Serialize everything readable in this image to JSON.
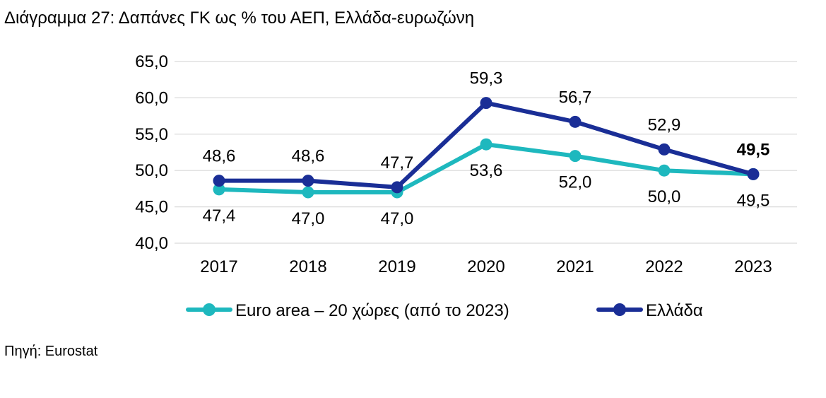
{
  "title": "Διάγραμμα 27: Δαπάνες ΓΚ ως % του ΑΕΠ, Ελλάδα-ευρωζώνη",
  "source": "Πηγή: Eurostat",
  "chart_data": {
    "type": "line",
    "title": "Διάγραμμα 27: Δαπάνες ΓΚ ως % του ΑΕΠ, Ελλάδα-ευρωζώνη",
    "xlabel": "",
    "ylabel": "",
    "x": [
      "2017",
      "2018",
      "2019",
      "2020",
      "2021",
      "2022",
      "2023"
    ],
    "ylim": [
      40.0,
      65.0
    ],
    "yticks": [
      "40,0",
      "45,0",
      "50,0",
      "55,0",
      "60,0",
      "65,0"
    ],
    "grid": true,
    "legend_position": "bottom",
    "series": [
      {
        "name": "Euro area – 20 χώρες (από το 2023)",
        "color": "#1EB8BE",
        "values": [
          47.4,
          47.0,
          47.0,
          53.6,
          52.0,
          50.0,
          49.5
        ],
        "labels": [
          "47,4",
          "47,0",
          "47,0",
          "53,6",
          "52,0",
          "50,0",
          "49,5"
        ]
      },
      {
        "name": "Ελλάδα",
        "color": "#1A2E96",
        "values": [
          48.6,
          48.6,
          47.7,
          59.3,
          56.7,
          52.9,
          49.5
        ],
        "labels": [
          "48,6",
          "48,6",
          "47,7",
          "59,3",
          "56,7",
          "52,9",
          "49,5"
        ]
      }
    ]
  }
}
